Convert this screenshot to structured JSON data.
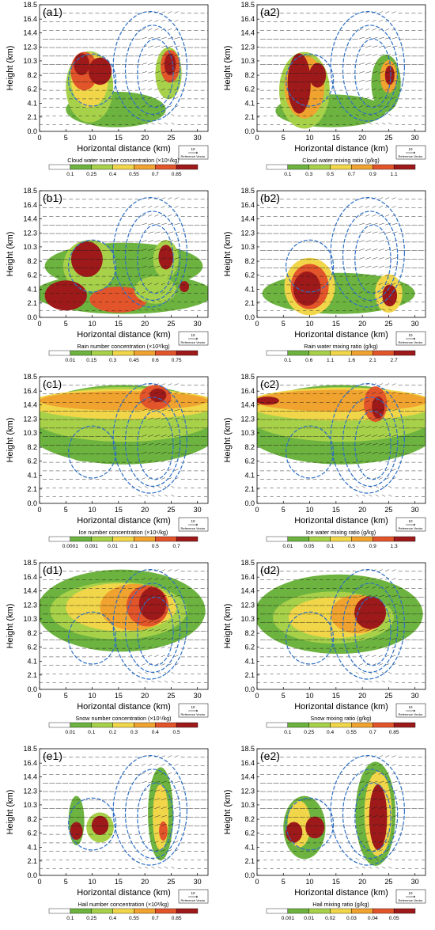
{
  "common": {
    "ylabel": "Height (km)",
    "xlabel": "Horizontal distance (km)",
    "yticks": [
      "18.5",
      "16.4",
      "14.4",
      "12.3",
      "10.3",
      "8.2",
      "6.2",
      "4.1",
      "2.1",
      "0.0"
    ],
    "xticks": [
      "0",
      "5",
      "10",
      "15",
      "20",
      "25",
      "30"
    ],
    "ref_vector_value": "10",
    "ref_vector_label": "Reference Vector"
  },
  "colors": {
    "bins": [
      "#ffffff",
      "#6db33f",
      "#a8d14a",
      "#f2d64a",
      "#f0a32e",
      "#e2542a",
      "#9e1a1a"
    ],
    "contour": "#2e6fc4",
    "vector": "#1a1a1a"
  },
  "chart_data": [
    {
      "type": "contour",
      "panel_label": "(a1)",
      "colorbar_title": "Cloud water number concentration (×10⁶/kg)",
      "levels": [
        "0.1",
        "0.25",
        "0.4",
        "0.55",
        "0.7",
        "0.85"
      ],
      "xlim": [
        0,
        32
      ],
      "ylim": [
        0,
        18.5
      ],
      "regions": [
        {
          "x": 14.5,
          "y": 3.2,
          "rx": 9.5,
          "ry": 2.6,
          "level": 1
        },
        {
          "x": 9.5,
          "y": 6.5,
          "rx": 4.5,
          "ry": 5.2,
          "level": 2
        },
        {
          "x": 9.5,
          "y": 7.5,
          "rx": 3.5,
          "ry": 4.0,
          "level": 3
        },
        {
          "x": 8.5,
          "y": 8.8,
          "rx": 2.6,
          "ry": 2.8,
          "level": 5
        },
        {
          "x": 11.5,
          "y": 8.8,
          "rx": 2.2,
          "ry": 2.0,
          "level": 6
        },
        {
          "x": 8.0,
          "y": 9.8,
          "rx": 1.5,
          "ry": 1.6,
          "level": 6
        },
        {
          "x": 24.5,
          "y": 8.5,
          "rx": 2.5,
          "ry": 3.8,
          "level": 2
        },
        {
          "x": 24.8,
          "y": 9.5,
          "rx": 1.8,
          "ry": 2.4,
          "level": 5
        },
        {
          "x": 24.8,
          "y": 9.8,
          "rx": 1.1,
          "ry": 1.6,
          "level": 6
        }
      ],
      "contours": [
        {
          "x": 21,
          "y": 9.5,
          "rx": 7.0,
          "ry": 8.0
        },
        {
          "x": 21.5,
          "y": 9.0,
          "rx": 5.2,
          "ry": 6.5
        },
        {
          "x": 22,
          "y": 8.5,
          "rx": 3.4,
          "ry": 5.0
        },
        {
          "x": 10,
          "y": 7.5,
          "rx": 4.5,
          "ry": 3.8
        }
      ]
    },
    {
      "type": "contour",
      "panel_label": "(a2)",
      "colorbar_title": "Cloud water mixing ratio (g/kg)",
      "levels": [
        "0.1",
        "0.3",
        "0.5",
        "0.7",
        "0.9",
        "1.1"
      ],
      "xlim": [
        0,
        32
      ],
      "ylim": [
        0,
        18.5
      ],
      "regions": [
        {
          "x": 14,
          "y": 3.0,
          "rx": 10.5,
          "ry": 2.4,
          "level": 1
        },
        {
          "x": 9.0,
          "y": 6.0,
          "rx": 4.8,
          "ry": 5.6,
          "level": 2
        },
        {
          "x": 9.0,
          "y": 6.5,
          "rx": 3.8,
          "ry": 4.6,
          "level": 4
        },
        {
          "x": 8.0,
          "y": 7.0,
          "rx": 2.2,
          "ry": 4.4,
          "level": 6
        },
        {
          "x": 11.5,
          "y": 8.2,
          "rx": 1.6,
          "ry": 1.8,
          "level": 6
        },
        {
          "x": 24.5,
          "y": 7.0,
          "rx": 2.8,
          "ry": 4.2,
          "level": 1
        },
        {
          "x": 25.0,
          "y": 8.0,
          "rx": 1.6,
          "ry": 2.4,
          "level": 4
        },
        {
          "x": 25.2,
          "y": 8.2,
          "rx": 0.9,
          "ry": 1.4,
          "level": 6
        }
      ],
      "contours": [
        {
          "x": 21,
          "y": 9.5,
          "rx": 7.0,
          "ry": 8.0
        },
        {
          "x": 21.5,
          "y": 9.0,
          "rx": 5.2,
          "ry": 6.5
        },
        {
          "x": 22,
          "y": 8.5,
          "rx": 3.4,
          "ry": 5.0
        },
        {
          "x": 10,
          "y": 7.5,
          "rx": 4.5,
          "ry": 3.8
        }
      ]
    },
    {
      "type": "contour",
      "panel_label": "(b1)",
      "colorbar_title": "Rain number concentration (×10³/kg)",
      "levels": [
        "0.01",
        "0.15",
        "0.3",
        "0.45",
        "0.6",
        "0.75"
      ],
      "xlim": [
        0,
        32
      ],
      "ylim": [
        0,
        18.5
      ],
      "regions": [
        {
          "x": 16,
          "y": 3.5,
          "rx": 17.0,
          "ry": 3.0,
          "level": 1
        },
        {
          "x": 16,
          "y": 7.5,
          "rx": 15.0,
          "ry": 3.4,
          "level": 1
        },
        {
          "x": 9.5,
          "y": 7.5,
          "rx": 5.0,
          "ry": 3.8,
          "level": 2
        },
        {
          "x": 9.0,
          "y": 8.5,
          "rx": 3.0,
          "ry": 2.6,
          "level": 6
        },
        {
          "x": 5.0,
          "y": 3.2,
          "rx": 4.0,
          "ry": 2.2,
          "level": 6
        },
        {
          "x": 15.0,
          "y": 2.6,
          "rx": 5.5,
          "ry": 1.9,
          "level": 5
        },
        {
          "x": 22.0,
          "y": 4.0,
          "rx": 4.0,
          "ry": 2.0,
          "level": 2
        },
        {
          "x": 24.0,
          "y": 8.5,
          "rx": 2.4,
          "ry": 2.8,
          "level": 2
        },
        {
          "x": 24.0,
          "y": 8.8,
          "rx": 1.4,
          "ry": 1.8,
          "level": 6
        },
        {
          "x": 27.5,
          "y": 4.5,
          "rx": 0.9,
          "ry": 0.8,
          "level": 6
        }
      ],
      "contours": [
        {
          "x": 21,
          "y": 9.5,
          "rx": 7.0,
          "ry": 8.0
        },
        {
          "x": 21.5,
          "y": 9.0,
          "rx": 5.2,
          "ry": 6.5
        },
        {
          "x": 22,
          "y": 8.5,
          "rx": 3.4,
          "ry": 5.0
        },
        {
          "x": 10,
          "y": 7.5,
          "rx": 4.5,
          "ry": 3.8
        }
      ]
    },
    {
      "type": "contour",
      "panel_label": "(b2)",
      "colorbar_title": "Rain water mixing ratio (g/kg)",
      "levels": [
        "0.1",
        "0.6",
        "1.1",
        "1.6",
        "2.1",
        "2.7"
      ],
      "xlim": [
        0,
        32
      ],
      "ylim": [
        0,
        18.5
      ],
      "regions": [
        {
          "x": 15.5,
          "y": 3.5,
          "rx": 14.5,
          "ry": 3.0,
          "level": 1
        },
        {
          "x": 10.0,
          "y": 4.5,
          "rx": 4.8,
          "ry": 4.2,
          "level": 3
        },
        {
          "x": 10.0,
          "y": 4.5,
          "rx": 3.6,
          "ry": 3.3,
          "level": 5
        },
        {
          "x": 9.5,
          "y": 4.2,
          "rx": 2.6,
          "ry": 2.5,
          "level": 6
        },
        {
          "x": 25.0,
          "y": 3.5,
          "rx": 2.6,
          "ry": 2.8,
          "level": 3
        },
        {
          "x": 25.2,
          "y": 3.2,
          "rx": 1.4,
          "ry": 1.6,
          "level": 6
        }
      ],
      "contours": [
        {
          "x": 21,
          "y": 9.5,
          "rx": 7.0,
          "ry": 8.0
        },
        {
          "x": 21.5,
          "y": 9.0,
          "rx": 5.2,
          "ry": 6.5
        },
        {
          "x": 22,
          "y": 8.5,
          "rx": 3.4,
          "ry": 5.0
        },
        {
          "x": 10,
          "y": 7.5,
          "rx": 4.5,
          "ry": 3.8
        }
      ]
    },
    {
      "type": "contour",
      "panel_label": "(c1)",
      "colorbar_title": "Ice number concentration (×10⁶/kg)",
      "levels": [
        "0.0001",
        "0.001",
        "0.01",
        "0.1",
        "0.5",
        "0.7"
      ],
      "xlim": [
        0,
        32
      ],
      "ylim": [
        0,
        18.5
      ],
      "regions": [
        {
          "x": 16,
          "y": 11.5,
          "rx": 19.0,
          "ry": 5.8,
          "level": 1
        },
        {
          "x": 16,
          "y": 13.0,
          "rx": 18.0,
          "ry": 4.0,
          "level": 2
        },
        {
          "x": 16,
          "y": 14.5,
          "rx": 18.0,
          "ry": 2.2,
          "level": 3
        },
        {
          "x": 16,
          "y": 15.0,
          "rx": 16.0,
          "ry": 1.4,
          "level": 4
        },
        {
          "x": 22.0,
          "y": 15.5,
          "rx": 3.0,
          "ry": 1.8,
          "level": 5
        },
        {
          "x": 22.5,
          "y": 15.8,
          "rx": 1.6,
          "ry": 1.0,
          "level": 6
        },
        {
          "x": 9.0,
          "y": 7.3,
          "rx": 3.5,
          "ry": 1.2,
          "level": 1
        }
      ],
      "contours": [
        {
          "x": 21,
          "y": 9.5,
          "rx": 7.0,
          "ry": 8.0
        },
        {
          "x": 21.5,
          "y": 9.0,
          "rx": 5.2,
          "ry": 6.5
        },
        {
          "x": 22,
          "y": 8.5,
          "rx": 3.4,
          "ry": 5.0
        },
        {
          "x": 10,
          "y": 7.5,
          "rx": 4.5,
          "ry": 3.8
        }
      ]
    },
    {
      "type": "contour",
      "panel_label": "(c2)",
      "colorbar_title": "Ice water mixing ratio (g/kg)",
      "levels": [
        "0.01",
        "0.05",
        "0.1",
        "0.5",
        "0.9",
        "1.3"
      ],
      "xlim": [
        0,
        32
      ],
      "ylim": [
        0,
        18.5
      ],
      "regions": [
        {
          "x": 16,
          "y": 11.5,
          "rx": 19.0,
          "ry": 5.8,
          "level": 1
        },
        {
          "x": 16,
          "y": 13.0,
          "rx": 18.0,
          "ry": 4.0,
          "level": 2
        },
        {
          "x": 16,
          "y": 14.5,
          "rx": 18.0,
          "ry": 2.4,
          "level": 3
        },
        {
          "x": 16,
          "y": 15.0,
          "rx": 16.5,
          "ry": 1.6,
          "level": 4
        },
        {
          "x": 2.0,
          "y": 15.0,
          "rx": 2.2,
          "ry": 0.6,
          "level": 6
        },
        {
          "x": 22.5,
          "y": 14.5,
          "rx": 2.2,
          "ry": 2.6,
          "level": 5
        },
        {
          "x": 23.0,
          "y": 14.0,
          "rx": 1.2,
          "ry": 1.6,
          "level": 6
        }
      ],
      "contours": [
        {
          "x": 21,
          "y": 9.5,
          "rx": 7.0,
          "ry": 8.0
        },
        {
          "x": 21.5,
          "y": 9.0,
          "rx": 5.2,
          "ry": 6.5
        },
        {
          "x": 22,
          "y": 8.5,
          "rx": 3.4,
          "ry": 5.0
        },
        {
          "x": 10,
          "y": 7.5,
          "rx": 4.5,
          "ry": 3.8
        }
      ]
    },
    {
      "type": "contour",
      "panel_label": "(d1)",
      "colorbar_title": "Snow number concentration (×10⁵/kg)",
      "levels": [
        "0.01",
        "0.1",
        "0.2",
        "0.3",
        "0.4",
        "0.5"
      ],
      "xlim": [
        0,
        32
      ],
      "ylim": [
        0,
        18.5
      ],
      "regions": [
        {
          "x": 15.5,
          "y": 11.5,
          "rx": 16.0,
          "ry": 6.0,
          "level": 1
        },
        {
          "x": 15.0,
          "y": 11.5,
          "rx": 13.0,
          "ry": 4.2,
          "level": 2
        },
        {
          "x": 15.5,
          "y": 12.0,
          "rx": 10.5,
          "ry": 3.5,
          "level": 3
        },
        {
          "x": 18.0,
          "y": 12.0,
          "rx": 6.5,
          "ry": 3.4,
          "level": 4
        },
        {
          "x": 20.5,
          "y": 12.2,
          "rx": 4.0,
          "ry": 3.0,
          "level": 5
        },
        {
          "x": 21.5,
          "y": 12.5,
          "rx": 2.6,
          "ry": 2.4,
          "level": 6
        }
      ],
      "contours": [
        {
          "x": 21,
          "y": 9.5,
          "rx": 7.0,
          "ry": 8.0
        },
        {
          "x": 21.5,
          "y": 9.0,
          "rx": 5.2,
          "ry": 6.5
        },
        {
          "x": 22,
          "y": 8.5,
          "rx": 3.4,
          "ry": 5.0
        },
        {
          "x": 10,
          "y": 7.5,
          "rx": 4.5,
          "ry": 3.8
        }
      ]
    },
    {
      "type": "contour",
      "panel_label": "(d2)",
      "colorbar_title": "Snow mixing ratio (g/kg)",
      "levels": [
        "0.1",
        "0.25",
        "0.4",
        "0.55",
        "0.7",
        "0.85"
      ],
      "xlim": [
        0,
        32
      ],
      "ylim": [
        0,
        18.5
      ],
      "regions": [
        {
          "x": 15.5,
          "y": 11.0,
          "rx": 16.0,
          "ry": 5.8,
          "level": 1
        },
        {
          "x": 14.5,
          "y": 10.5,
          "rx": 11.5,
          "ry": 3.8,
          "level": 2
        },
        {
          "x": 15.0,
          "y": 10.5,
          "rx": 9.0,
          "ry": 3.0,
          "level": 3
        },
        {
          "x": 19.0,
          "y": 11.0,
          "rx": 5.0,
          "ry": 2.8,
          "level": 4
        },
        {
          "x": 21.5,
          "y": 11.2,
          "rx": 3.0,
          "ry": 2.4,
          "level": 6
        }
      ],
      "contours": [
        {
          "x": 21,
          "y": 9.5,
          "rx": 7.0,
          "ry": 8.0
        },
        {
          "x": 21.5,
          "y": 9.0,
          "rx": 5.2,
          "ry": 6.5
        },
        {
          "x": 22,
          "y": 8.5,
          "rx": 3.4,
          "ry": 5.0
        },
        {
          "x": 10,
          "y": 7.5,
          "rx": 4.5,
          "ry": 3.8
        }
      ]
    },
    {
      "type": "contour",
      "panel_label": "(e1)",
      "colorbar_title": "Hail number concentration (×10³/kg)",
      "levels": [
        "0.1",
        "0.25",
        "0.4",
        "0.55",
        "0.7",
        "0.85"
      ],
      "xlim": [
        0,
        32
      ],
      "ylim": [
        0,
        18.5
      ],
      "regions": [
        {
          "x": 7.0,
          "y": 8.0,
          "rx": 1.5,
          "ry": 3.6,
          "level": 1
        },
        {
          "x": 7.0,
          "y": 6.5,
          "rx": 1.2,
          "ry": 1.3,
          "level": 6
        },
        {
          "x": 11.5,
          "y": 7.0,
          "rx": 2.6,
          "ry": 2.2,
          "level": 2
        },
        {
          "x": 11.5,
          "y": 7.3,
          "rx": 1.6,
          "ry": 1.4,
          "level": 6
        },
        {
          "x": 23.0,
          "y": 9.0,
          "rx": 2.4,
          "ry": 6.8,
          "level": 1
        },
        {
          "x": 23.0,
          "y": 8.5,
          "rx": 1.5,
          "ry": 4.8,
          "level": 3
        },
        {
          "x": 23.5,
          "y": 6.5,
          "rx": 0.8,
          "ry": 1.4,
          "level": 5
        }
      ],
      "contours": [
        {
          "x": 21,
          "y": 9.5,
          "rx": 7.0,
          "ry": 8.0
        },
        {
          "x": 21.5,
          "y": 9.0,
          "rx": 5.2,
          "ry": 6.5
        },
        {
          "x": 22,
          "y": 8.5,
          "rx": 3.4,
          "ry": 5.0
        },
        {
          "x": 10,
          "y": 7.5,
          "rx": 4.5,
          "ry": 3.8
        }
      ]
    },
    {
      "type": "contour",
      "panel_label": "(e2)",
      "colorbar_title": "Hail mixing ratio (g/kg)",
      "levels": [
        "0.001",
        "0.01",
        "0.02",
        "0.03",
        "0.04",
        "0.05"
      ],
      "xlim": [
        0,
        32
      ],
      "ylim": [
        0,
        18.5
      ],
      "regions": [
        {
          "x": 9.0,
          "y": 7.0,
          "rx": 4.0,
          "ry": 4.6,
          "level": 1
        },
        {
          "x": 8.0,
          "y": 7.5,
          "rx": 2.2,
          "ry": 3.4,
          "level": 3
        },
        {
          "x": 7.0,
          "y": 6.3,
          "rx": 1.6,
          "ry": 1.5,
          "level": 6
        },
        {
          "x": 11.0,
          "y": 7.0,
          "rx": 1.8,
          "ry": 1.6,
          "level": 6
        },
        {
          "x": 22.5,
          "y": 9.0,
          "rx": 3.8,
          "ry": 7.6,
          "level": 1
        },
        {
          "x": 23.0,
          "y": 9.0,
          "rx": 2.6,
          "ry": 6.2,
          "level": 3
        },
        {
          "x": 23.0,
          "y": 8.5,
          "rx": 1.7,
          "ry": 4.8,
          "level": 6
        }
      ],
      "contours": [
        {
          "x": 21,
          "y": 9.5,
          "rx": 7.0,
          "ry": 8.0
        },
        {
          "x": 21.5,
          "y": 9.0,
          "rx": 5.2,
          "ry": 6.5
        },
        {
          "x": 22,
          "y": 8.5,
          "rx": 3.4,
          "ry": 5.0
        },
        {
          "x": 10,
          "y": 7.5,
          "rx": 4.5,
          "ry": 3.8
        }
      ]
    }
  ]
}
